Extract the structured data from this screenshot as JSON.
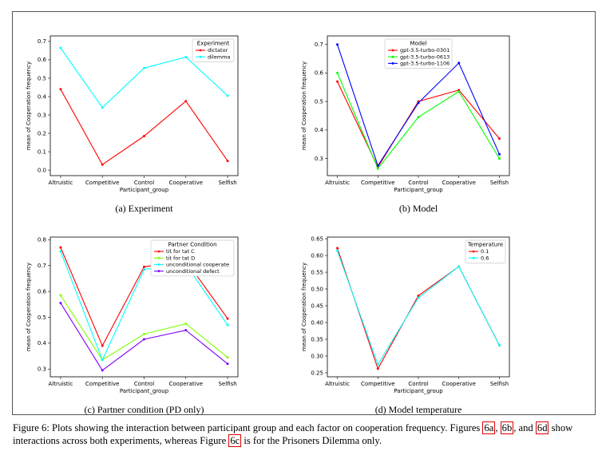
{
  "panels": [
    {
      "id": "a",
      "caption": "(a) Experiment",
      "chart_data": {
        "type": "line",
        "categories": [
          "Altruistic",
          "Competitive",
          "Control",
          "Cooperative",
          "Selfish"
        ],
        "xlabel": "Participant_group",
        "ylabel": "mean of Cooperation frequency",
        "ylim": [
          -0.03,
          0.73
        ],
        "yticks": [
          0.0,
          0.1,
          0.2,
          0.3,
          0.4,
          0.5,
          0.6,
          0.7
        ],
        "ytick_labels": [
          "0.0",
          "0.1",
          "0.2",
          "0.3",
          "0.4",
          "0.5",
          "0.6",
          "0.7"
        ],
        "legend_title": "Experiment",
        "legend_position": "top-right",
        "series": [
          {
            "name": "dictator",
            "color": "#ff0000",
            "values": [
              0.44,
              0.03,
              0.185,
              0.375,
              0.05
            ]
          },
          {
            "name": "dilemma",
            "color": "#00ffff",
            "values": [
              0.665,
              0.34,
              0.555,
              0.615,
              0.405
            ]
          }
        ]
      }
    },
    {
      "id": "b",
      "caption": "(b) Model",
      "chart_data": {
        "type": "line",
        "categories": [
          "Altruistic",
          "Competitive",
          "Control",
          "Cooperative",
          "Selfish"
        ],
        "xlabel": "Participant_group",
        "ylabel": "mean of Cooperation frequency",
        "ylim": [
          0.24,
          0.73
        ],
        "yticks": [
          0.3,
          0.4,
          0.5,
          0.6,
          0.7
        ],
        "ytick_labels": [
          "0.3",
          "0.4",
          "0.5",
          "0.6",
          "0.7"
        ],
        "legend_title": "Model",
        "legend_position": "top-center",
        "series": [
          {
            "name": "gpt-3.5-turbo-0301",
            "color": "#ff0000",
            "values": [
              0.57,
              0.27,
              0.5,
              0.54,
              0.37
            ]
          },
          {
            "name": "gpt-3.5-turbo-0613",
            "color": "#00ff00",
            "values": [
              0.6,
              0.265,
              0.445,
              0.535,
              0.3
            ]
          },
          {
            "name": "gpt-3.5-turbo-1106",
            "color": "#0000ff",
            "values": [
              0.7,
              0.275,
              0.495,
              0.635,
              0.315
            ]
          }
        ]
      }
    },
    {
      "id": "c",
      "caption": "(c) Partner condition (PD only)",
      "chart_data": {
        "type": "line",
        "categories": [
          "Altruistic",
          "Competitive",
          "Control",
          "Cooperative",
          "Selfish"
        ],
        "xlabel": "Participant_group",
        "ylabel": "mean of Cooperation frequency",
        "ylim": [
          0.27,
          0.81
        ],
        "yticks": [
          0.3,
          0.4,
          0.5,
          0.6,
          0.7,
          0.8
        ],
        "ytick_labels": [
          "0.3",
          "0.4",
          "0.5",
          "0.6",
          "0.7",
          "0.8"
        ],
        "legend_title": "Partner Condition",
        "legend_position": "top-right",
        "series": [
          {
            "name": "tit for tat C",
            "color": "#ff0000",
            "values": [
              0.77,
              0.39,
              0.695,
              0.72,
              0.495
            ]
          },
          {
            "name": "tit for tat D",
            "color": "#7fff00",
            "values": [
              0.585,
              0.335,
              0.435,
              0.475,
              0.345
            ]
          },
          {
            "name": "unconditional cooperate",
            "color": "#00ffff",
            "values": [
              0.755,
              0.335,
              0.685,
              0.705,
              0.47
            ]
          },
          {
            "name": "unconditional defect",
            "color": "#7f00ff",
            "values": [
              0.555,
              0.295,
              0.415,
              0.45,
              0.32
            ]
          }
        ]
      }
    },
    {
      "id": "d",
      "caption": "(d) Model temperature",
      "chart_data": {
        "type": "line",
        "categories": [
          "Altruistic",
          "Competitive",
          "Control",
          "Cooperative",
          "Selfish"
        ],
        "xlabel": "Participant_group",
        "ylabel": "mean of Cooperation frequency",
        "ylim": [
          0.238,
          0.655
        ],
        "yticks": [
          0.25,
          0.3,
          0.35,
          0.4,
          0.45,
          0.5,
          0.55,
          0.6,
          0.65
        ],
        "ytick_labels": [
          "0.25",
          "0.30",
          "0.35",
          "0.40",
          "0.45",
          "0.50",
          "0.55",
          "0.60",
          "0.65"
        ],
        "legend_title": "Temperature",
        "legend_position": "top-right",
        "series": [
          {
            "name": "0.1",
            "color": "#ff0000",
            "values": [
              0.622,
              0.262,
              0.48,
              0.567,
              0.332
            ]
          },
          {
            "name": "0.6",
            "color": "#00ffff",
            "values": [
              0.614,
              0.275,
              0.474,
              0.567,
              0.332
            ]
          }
        ]
      }
    }
  ],
  "caption": {
    "part1": "Figure 6: Plots showing the interaction between participant group and each factor on cooperation frequency. Figures ",
    "ref_a": "6a",
    "sep1": ", ",
    "ref_b": "6b",
    "sep2": ", and ",
    "ref_d": "6d",
    "part2": " show interactions across both experiments, whereas Figure ",
    "ref_c": "6c",
    "part3": " is for the Prisoners Dilemma only."
  }
}
